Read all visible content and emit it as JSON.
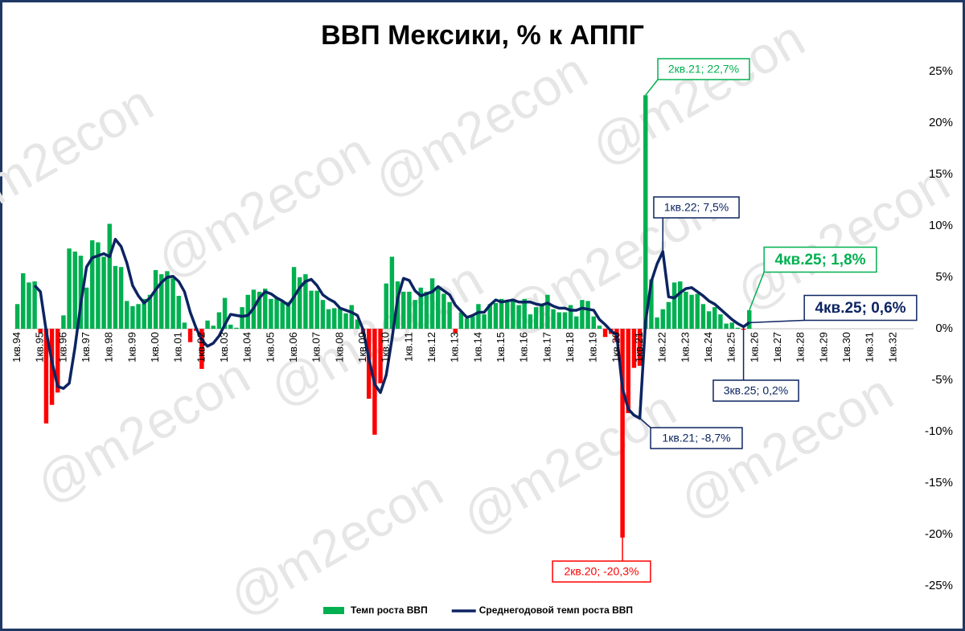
{
  "chart_data": {
    "type": "bar-line",
    "title": "ВВП Мексики, % к АППГ",
    "watermark": "@m2econ",
    "categories": [
      "1кв.94",
      null,
      null,
      null,
      "1кв.95",
      null,
      null,
      null,
      "1кв.96",
      null,
      null,
      null,
      "1кв.97",
      null,
      null,
      null,
      "1кв.98",
      null,
      null,
      null,
      "1кв.99",
      null,
      null,
      null,
      "1кв.00",
      null,
      null,
      null,
      "1кв.01",
      null,
      null,
      null,
      "1кв.02",
      null,
      null,
      null,
      "1кв.03",
      null,
      null,
      null,
      "1кв.04",
      null,
      null,
      null,
      "1кв.05",
      null,
      null,
      null,
      "1кв.06",
      null,
      null,
      null,
      "1кв.07",
      null,
      null,
      null,
      "1кв.08",
      null,
      null,
      null,
      "1кв.09",
      null,
      null,
      null,
      "1кв.10",
      null,
      null,
      null,
      "1кв.11",
      null,
      null,
      null,
      "1кв.12",
      null,
      null,
      null,
      "1кв.13",
      null,
      null,
      null,
      "1кв.14",
      null,
      null,
      null,
      "1кв.15",
      null,
      null,
      null,
      "1кв.16",
      null,
      null,
      null,
      "1кв.17",
      null,
      null,
      null,
      "1кв.18",
      null,
      null,
      null,
      "1кв.19",
      null,
      null,
      null,
      "1кв.20",
      null,
      null,
      null,
      "1кв.21",
      null,
      null,
      null,
      "1кв.22",
      null,
      null,
      null,
      "1кв.23",
      null,
      null,
      null,
      "1кв.24",
      null,
      null,
      null,
      "1кв.25",
      null,
      null,
      null,
      "1кв.26",
      null,
      null,
      null,
      "1кв.27",
      null,
      null,
      null,
      "1кв.28",
      null,
      null,
      null,
      "1кв.29",
      null,
      null,
      null,
      "1кв.30",
      null,
      null,
      null,
      "1кв.31",
      null,
      null,
      null,
      "1кв.32",
      null,
      null,
      null
    ],
    "series": [
      {
        "name": "Темп роста ВВП",
        "kind": "bar",
        "color": "#00b050",
        "negative_color": "#ff0000",
        "values": [
          2.4,
          5.4,
          4.5,
          4.6,
          -0.4,
          -9.2,
          -7.4,
          -6.2,
          1.3,
          7.8,
          7.5,
          7.1,
          4.0,
          8.6,
          8.4,
          7.0,
          10.2,
          6.1,
          6.0,
          2.7,
          2.2,
          2.4,
          2.9,
          3.3,
          5.7,
          5.3,
          5.6,
          4.9,
          3.2,
          0.6,
          -1.3,
          -0.2,
          -3.9,
          0.8,
          0.3,
          1.6,
          3.0,
          0.4,
          0.1,
          2.1,
          3.3,
          3.8,
          3.6,
          3.9,
          2.9,
          3.0,
          2.6,
          2.6,
          6.0,
          5.0,
          5.3,
          3.7,
          3.7,
          2.8,
          1.9,
          2.0,
          2.0,
          1.5,
          2.3,
          0.9,
          -0.5,
          -6.8,
          -10.3,
          -5.3,
          4.4,
          7.0,
          4.6,
          3.6,
          3.6,
          2.8,
          4.0,
          3.6,
          4.9,
          4.1,
          3.4,
          2.6,
          -0.4,
          1.6,
          1.0,
          1.2,
          2.4,
          1.4,
          2.4,
          2.5,
          2.9,
          2.6,
          2.9,
          2.3,
          2.9,
          1.4,
          2.1,
          2.4,
          3.3,
          1.9,
          1.6,
          1.6,
          2.3,
          1.2,
          2.8,
          2.7,
          1.2,
          0.3,
          -0.8,
          -0.5,
          -1.3,
          -20.3,
          -8.2,
          -3.8,
          -3.6,
          22.7,
          4.8,
          1.1,
          1.9,
          2.6,
          4.5,
          4.6,
          3.6,
          3.3,
          3.4,
          2.4,
          1.7,
          2.1,
          1.4,
          0.5,
          0.6,
          0.1,
          -0.1,
          1.8,
          null,
          null,
          null,
          null,
          null,
          null,
          null,
          null,
          null,
          null,
          null,
          null,
          null,
          null,
          null,
          null,
          null,
          null,
          null,
          null,
          null,
          null,
          null,
          null,
          null,
          null,
          null,
          null
        ]
      },
      {
        "name": "Среднегодовой темп роста ВВП",
        "kind": "line",
        "color": "#0c2461",
        "values": [
          null,
          null,
          null,
          4.2,
          3.6,
          -0.2,
          -3.2,
          -5.6,
          -5.8,
          -5.3,
          -1.8,
          2.4,
          6.0,
          6.9,
          7.1,
          7.3,
          7.0,
          8.7,
          8.0,
          6.4,
          4.2,
          3.2,
          2.5,
          3.0,
          3.8,
          4.5,
          5.0,
          5.1,
          4.6,
          3.6,
          1.6,
          0.1,
          -1.1,
          -1.7,
          -1.4,
          -0.7,
          0.4,
          1.4,
          1.3,
          1.2,
          1.3,
          2.0,
          3.0,
          3.6,
          3.4,
          3.0,
          2.7,
          2.3,
          3.1,
          4.0,
          4.6,
          4.8,
          4.2,
          3.3,
          2.9,
          2.6,
          2.0,
          1.8,
          1.6,
          1.3,
          -0.1,
          -2.9,
          -5.4,
          -6.2,
          -4.5,
          -1.0,
          3.0,
          4.9,
          4.7,
          3.7,
          3.2,
          3.4,
          3.6,
          4.1,
          3.7,
          3.3,
          2.3,
          1.7,
          1.1,
          1.3,
          1.6,
          1.6,
          2.3,
          2.8,
          2.6,
          2.7,
          2.8,
          2.6,
          2.6,
          2.6,
          2.4,
          2.3,
          2.5,
          2.2,
          2.0,
          2.0,
          1.8,
          1.8,
          2.0,
          1.9,
          1.8,
          0.9,
          0.4,
          -0.2,
          -0.6,
          -5.8,
          -7.8,
          -8.4,
          -8.7,
          0.7,
          4.6,
          6.3,
          7.5,
          3.1,
          3.0,
          3.5,
          3.9,
          4.0,
          3.6,
          3.2,
          2.7,
          2.4,
          1.9,
          1.4,
          0.9,
          0.5,
          0.2,
          0.6,
          null,
          null,
          null,
          null,
          null,
          null,
          null,
          null,
          null,
          null,
          null,
          null,
          null,
          null,
          null,
          null,
          null,
          null,
          null,
          null,
          null,
          null,
          null,
          null,
          null,
          null,
          null,
          null
        ]
      }
    ],
    "ylim": [
      -25,
      25
    ],
    "yticks": [
      {
        "value": -25,
        "label": "-25%"
      },
      {
        "value": -20,
        "label": "-20%"
      },
      {
        "value": -15,
        "label": "-15%"
      },
      {
        "value": -10,
        "label": "-10%"
      },
      {
        "value": -5,
        "label": "-5%"
      },
      {
        "value": 0,
        "label": "0%"
      },
      {
        "value": 5,
        "label": "5%"
      },
      {
        "value": 10,
        "label": "10%"
      },
      {
        "value": 15,
        "label": "15%"
      },
      {
        "value": 20,
        "label": "20%"
      },
      {
        "value": 25,
        "label": "25%"
      }
    ],
    "annotations": [
      {
        "text": "2кв.21; 22,7%",
        "color": "#00b050"
      },
      {
        "text": "1кв.22; 7,5%",
        "color": "#0c2461"
      },
      {
        "text": "4кв.25; 1,8%",
        "color": "#00b050"
      },
      {
        "text": "4кв.25; 0,6%",
        "color": "#0c2461"
      },
      {
        "text": "3кв.25; 0,2%",
        "color": "#0c2461"
      },
      {
        "text": "1кв.21; -8,7%",
        "color": "#0c2461"
      },
      {
        "text": "2кв.20; -20,3%",
        "color": "#ff0000"
      }
    ]
  }
}
